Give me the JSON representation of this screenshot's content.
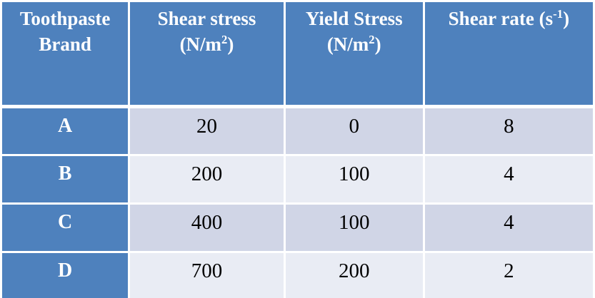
{
  "colors": {
    "header_bg": "#4E81BD",
    "header_text": "#FFFFFF",
    "row_band_dark": "#D0D5E6",
    "row_band_light": "#E9ECF4",
    "body_text": "#000000",
    "border": "#FFFFFF"
  },
  "table": {
    "columns": [
      {
        "id": "brand",
        "line1": "Toothpaste",
        "line2": "Brand"
      },
      {
        "id": "shear_stress",
        "line1": "Shear stress",
        "unit_pre": "(N/m",
        "unit_sup": "2",
        "unit_post": ")"
      },
      {
        "id": "yield_stress",
        "line1": "Yield Stress",
        "unit_pre": "(N/m",
        "unit_sup": "2",
        "unit_post": ")"
      },
      {
        "id": "shear_rate",
        "line1": "Shear rate",
        "unit_pre": " (s",
        "unit_sup": "-1",
        "unit_post": ")"
      }
    ],
    "rows": [
      {
        "brand": "A",
        "shear_stress": "20",
        "yield_stress": "0",
        "shear_rate": "8"
      },
      {
        "brand": "B",
        "shear_stress": "200",
        "yield_stress": "100",
        "shear_rate": "4"
      },
      {
        "brand": "C",
        "shear_stress": "400",
        "yield_stress": "100",
        "shear_rate": "4"
      },
      {
        "brand": "D",
        "shear_stress": "700",
        "yield_stress": "200",
        "shear_rate": "2"
      }
    ]
  },
  "chart_data": {
    "type": "table",
    "title": "",
    "columns": [
      "Toothpaste Brand",
      "Shear stress (N/m²)",
      "Yield Stress (N/m²)",
      "Shear rate (s⁻¹)"
    ],
    "rows": [
      [
        "A",
        20,
        0,
        8
      ],
      [
        "B",
        200,
        100,
        4
      ],
      [
        "C",
        400,
        100,
        4
      ],
      [
        "D",
        700,
        200,
        2
      ]
    ]
  }
}
